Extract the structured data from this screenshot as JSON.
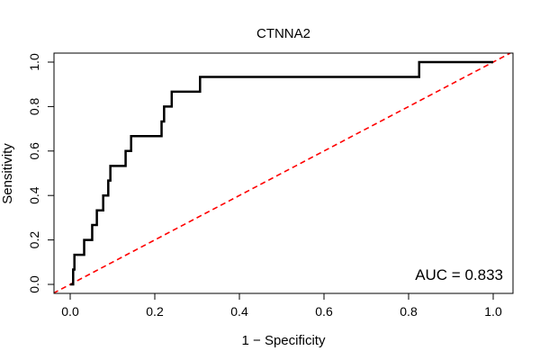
{
  "chart_data": {
    "type": "line",
    "title": "CTNNA2",
    "xlabel": "1 − Specificity",
    "ylabel": "Sensitivity",
    "xlim": [
      0,
      1
    ],
    "ylim": [
      0,
      1
    ],
    "xticks": [
      0.0,
      0.2,
      0.4,
      0.6,
      0.8,
      1.0
    ],
    "yticks": [
      0.0,
      0.2,
      0.4,
      0.6,
      0.8,
      1.0
    ],
    "xtick_labels": [
      "0.0",
      "0.2",
      "0.4",
      "0.6",
      "0.8",
      "1.0"
    ],
    "ytick_labels": [
      "0.0",
      "0.2",
      "0.4",
      "0.6",
      "0.8",
      "1.0"
    ],
    "annotation": "AUC = 0.833",
    "grid": false,
    "series": [
      {
        "name": "ROC curve",
        "color": "#000000",
        "style": "step",
        "x": [
          0.0,
          0.007,
          0.007,
          0.01,
          0.01,
          0.033,
          0.033,
          0.052,
          0.052,
          0.063,
          0.063,
          0.078,
          0.078,
          0.09,
          0.09,
          0.095,
          0.095,
          0.131,
          0.131,
          0.144,
          0.144,
          0.216,
          0.216,
          0.222,
          0.222,
          0.24,
          0.24,
          0.307,
          0.307,
          0.825,
          0.825,
          1.0
        ],
        "y": [
          0.0,
          0.0,
          0.067,
          0.067,
          0.133,
          0.133,
          0.2,
          0.2,
          0.267,
          0.267,
          0.333,
          0.333,
          0.4,
          0.4,
          0.467,
          0.467,
          0.533,
          0.533,
          0.6,
          0.6,
          0.667,
          0.667,
          0.733,
          0.733,
          0.8,
          0.8,
          0.867,
          0.867,
          0.933,
          0.933,
          1.0,
          1.0
        ]
      },
      {
        "name": "Reference diagonal",
        "color": "#ff0000",
        "style": "dashed",
        "x": [
          -0.04,
          1.04
        ],
        "y": [
          -0.04,
          1.04
        ]
      }
    ]
  }
}
